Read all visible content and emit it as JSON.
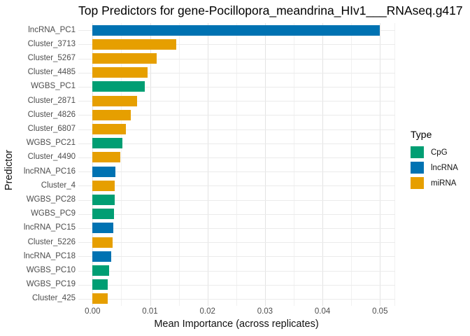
{
  "title": "Top Predictors for gene-Pocillopora_meandrina_HIv1___RNAseq.g417",
  "axes": {
    "x_label": "Mean Importance (across replicates)",
    "y_label": "Predictor",
    "x_ticks": [
      {
        "label": "0.00",
        "value": 0
      },
      {
        "label": "0.01",
        "value": 0.01
      },
      {
        "label": "0.02",
        "value": 0.02
      },
      {
        "label": "0.03",
        "value": 0.03
      },
      {
        "label": "0.04",
        "value": 0.04
      },
      {
        "label": "0.05",
        "value": 0.05
      }
    ]
  },
  "legend": {
    "title": "Type",
    "items": [
      {
        "label": "CpG",
        "color": "#009E73"
      },
      {
        "label": "lncRNA",
        "color": "#0072B2"
      },
      {
        "label": "miRNA",
        "color": "#E69F00"
      }
    ]
  },
  "chart_data": {
    "type": "bar",
    "orientation": "horizontal",
    "title": "Top Predictors for gene-Pocillopora_meandrina_HIv1___RNAseq.g417",
    "xlabel": "Mean Importance (across replicates)",
    "ylabel": "Predictor",
    "xlim": [
      0,
      0.0525
    ],
    "x_tick_values": [
      0,
      0.01,
      0.02,
      0.03,
      0.04,
      0.05
    ],
    "grid": true,
    "legend_position": "right",
    "legend_title": "Type",
    "type_colors": {
      "CpG": "#009E73",
      "lncRNA": "#0072B2",
      "miRNA": "#E69F00"
    },
    "bars": [
      {
        "predictor": "lncRNA_PC1",
        "type": "lncRNA",
        "value": 0.05
      },
      {
        "predictor": "Cluster_3713",
        "type": "miRNA",
        "value": 0.0146
      },
      {
        "predictor": "Cluster_5267",
        "type": "miRNA",
        "value": 0.0112
      },
      {
        "predictor": "Cluster_4485",
        "type": "miRNA",
        "value": 0.0096
      },
      {
        "predictor": "WGBS_PC1",
        "type": "CpG",
        "value": 0.0091
      },
      {
        "predictor": "Cluster_2871",
        "type": "miRNA",
        "value": 0.0077
      },
      {
        "predictor": "Cluster_4826",
        "type": "miRNA",
        "value": 0.0067
      },
      {
        "predictor": "Cluster_6807",
        "type": "miRNA",
        "value": 0.0058
      },
      {
        "predictor": "WGBS_PC21",
        "type": "CpG",
        "value": 0.0052
      },
      {
        "predictor": "Cluster_4490",
        "type": "miRNA",
        "value": 0.0048
      },
      {
        "predictor": "lncRNA_PC16",
        "type": "lncRNA",
        "value": 0.004
      },
      {
        "predictor": "Cluster_4",
        "type": "miRNA",
        "value": 0.0039
      },
      {
        "predictor": "WGBS_PC28",
        "type": "CpG",
        "value": 0.0039
      },
      {
        "predictor": "WGBS_PC9",
        "type": "CpG",
        "value": 0.0037
      },
      {
        "predictor": "lncRNA_PC15",
        "type": "lncRNA",
        "value": 0.0036
      },
      {
        "predictor": "Cluster_5226",
        "type": "miRNA",
        "value": 0.0035
      },
      {
        "predictor": "lncRNA_PC18",
        "type": "lncRNA",
        "value": 0.0032
      },
      {
        "predictor": "WGBS_PC10",
        "type": "CpG",
        "value": 0.0029
      },
      {
        "predictor": "WGBS_PC19",
        "type": "CpG",
        "value": 0.0027
      },
      {
        "predictor": "Cluster_425",
        "type": "miRNA",
        "value": 0.0026
      }
    ]
  },
  "colors": {
    "background": "#ffffff",
    "grid_major": "#e3e3e3",
    "grid_minor": "#f1f1f1",
    "axis_text": "#4d4d4d",
    "title_text": "#000000"
  }
}
